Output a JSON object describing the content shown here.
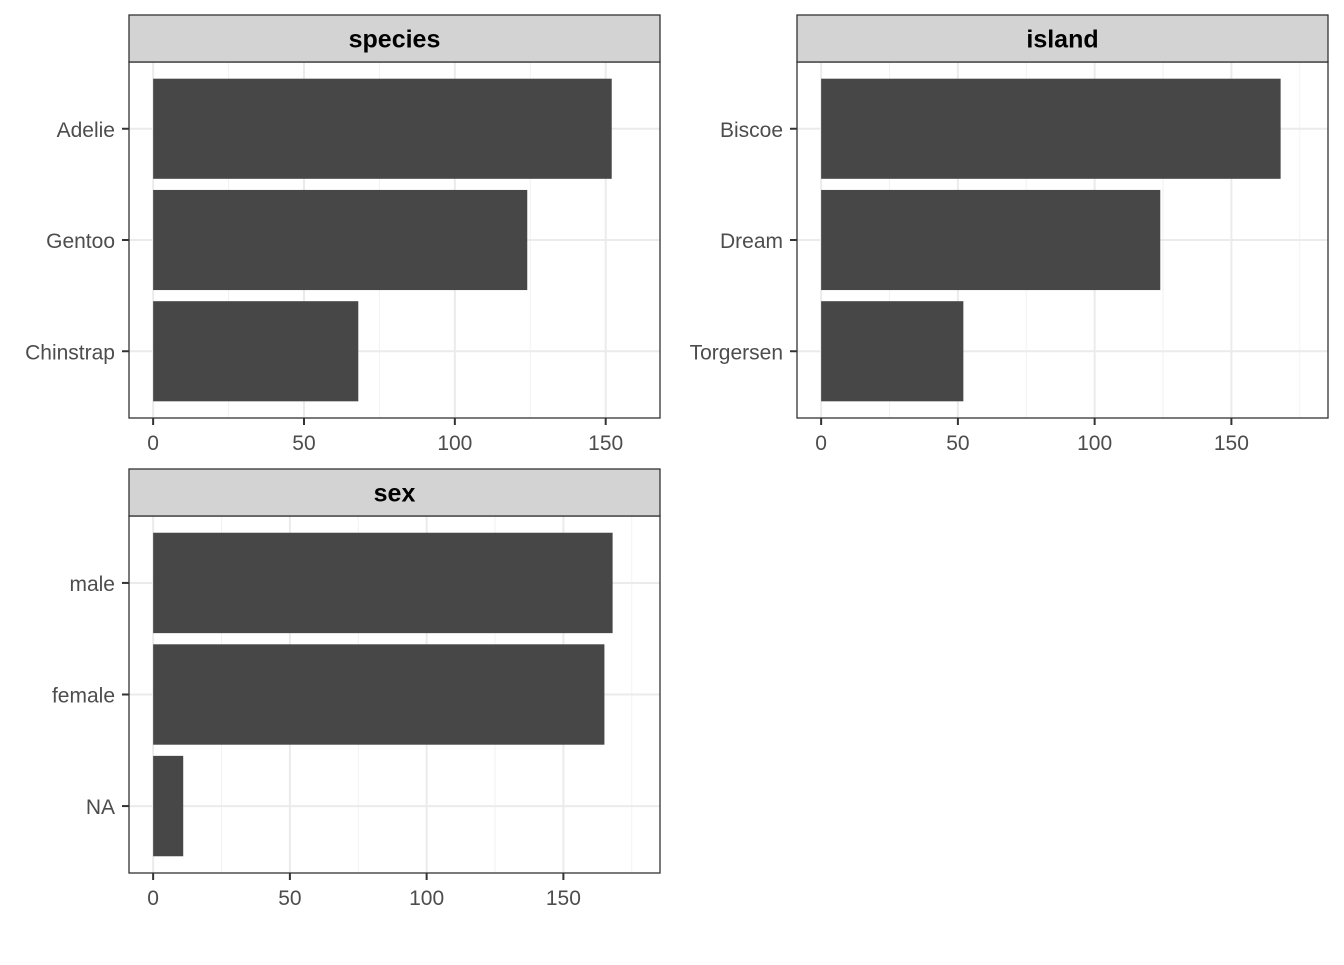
{
  "chart_data": [
    {
      "type": "bar",
      "orientation": "horizontal",
      "title": "species",
      "categories": [
        "Adelie",
        "Gentoo",
        "Chinstrap"
      ],
      "values": [
        152,
        124,
        68
      ],
      "xlim": [
        0,
        160
      ],
      "xticks": [
        0,
        50,
        100,
        150
      ],
      "xtick_labels": [
        "0",
        "50",
        "100",
        "150"
      ],
      "grid": true
    },
    {
      "type": "bar",
      "orientation": "horizontal",
      "title": "island",
      "categories": [
        "Biscoe",
        "Dream",
        "Torgersen"
      ],
      "values": [
        168,
        124,
        52
      ],
      "xlim": [
        0,
        176.5
      ],
      "xticks": [
        0,
        50,
        100,
        150
      ],
      "xtick_labels": [
        "0",
        "50",
        "100",
        "150"
      ],
      "grid": true
    },
    {
      "type": "bar",
      "orientation": "horizontal",
      "title": "sex",
      "categories": [
        "male",
        "female",
        "NA"
      ],
      "values": [
        168,
        165,
        11
      ],
      "xlim": [
        0,
        176.5
      ],
      "xticks": [
        0,
        50,
        100,
        150
      ],
      "xtick_labels": [
        "0",
        "50",
        "100",
        "150"
      ],
      "grid": true
    }
  ],
  "colors": {
    "bar": "#474747",
    "strip_fill": "#d3d3d3",
    "panel_border": "#333333",
    "grid_major": "#ebebeb",
    "grid_minor": "#f2f2f2",
    "tick_label": "#4d4d4d"
  }
}
